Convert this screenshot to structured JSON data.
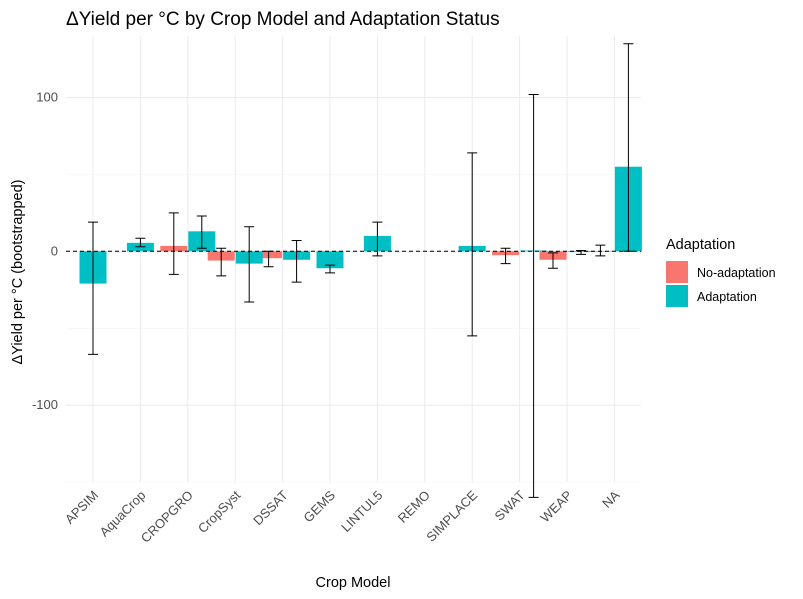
{
  "chart_data": {
    "type": "bar",
    "title": "ΔYield per °C by Crop Model and Adaptation Status",
    "xlabel": "Crop Model",
    "ylabel": "ΔYield per °C (bootstrapped)",
    "categories": [
      "APSIM",
      "AquaCrop",
      "CROPGRO",
      "CropSyst",
      "DSSAT",
      "GEMS",
      "LINTUL5",
      "REMO",
      "SIMPLACE",
      "SWAT",
      "WEAP",
      "NA"
    ],
    "ylim": [
      -150,
      140
    ],
    "y_ticks": [
      -100,
      0,
      100
    ],
    "y_tick_labels": [
      "-100",
      "0",
      "100"
    ],
    "grid": true,
    "zero_line": "dashed",
    "legend": {
      "title": "Adaptation",
      "position": "right",
      "entries": [
        {
          "label": "No-adaptation",
          "color": "#F8766D"
        },
        {
          "label": "Adaptation",
          "color": "#00BFC4"
        }
      ]
    },
    "series": [
      {
        "name": "No-adaptation",
        "color": "#F8766D",
        "points": [
          {
            "category": "CROPGRO",
            "value": 3.5,
            "lower": -15,
            "upper": 25
          },
          {
            "category": "CropSyst",
            "value": -6,
            "lower": -16,
            "upper": 2
          },
          {
            "category": "DSSAT",
            "value": -4.5,
            "lower": -10,
            "upper": 0
          },
          {
            "category": "SWAT",
            "value": -2.5,
            "lower": -8,
            "upper": 2
          },
          {
            "category": "WEAP",
            "value": -5.5,
            "lower": -11,
            "upper": -1
          },
          {
            "category": "NA",
            "value": 0,
            "lower": -3,
            "upper": 4
          }
        ]
      },
      {
        "name": "Adaptation",
        "color": "#00BFC4",
        "points": [
          {
            "category": "APSIM",
            "value": -21,
            "lower": -67,
            "upper": 19,
            "single": true
          },
          {
            "category": "AquaCrop",
            "value": 5.5,
            "lower": 3,
            "upper": 8.5,
            "single": true
          },
          {
            "category": "CROPGRO",
            "value": 13,
            "lower": 2,
            "upper": 23
          },
          {
            "category": "CropSyst",
            "value": -8,
            "lower": -33,
            "upper": 16
          },
          {
            "category": "DSSAT",
            "value": -5.5,
            "lower": -20,
            "upper": 7
          },
          {
            "category": "GEMS",
            "value": -11,
            "lower": -14,
            "upper": -9,
            "single": true
          },
          {
            "category": "LINTUL5",
            "value": 10,
            "lower": -3,
            "upper": 19,
            "single": true
          },
          {
            "category": "SIMPLACE",
            "value": 3.5,
            "lower": -55,
            "upper": 64,
            "single": true
          },
          {
            "category": "SWAT",
            "value": 0.5,
            "lower": -160,
            "upper": 102
          },
          {
            "category": "WEAP",
            "value": -0.5,
            "lower": -2,
            "upper": 0.5
          },
          {
            "category": "NA",
            "value": 55,
            "lower": 0,
            "upper": 135
          }
        ]
      }
    ]
  }
}
